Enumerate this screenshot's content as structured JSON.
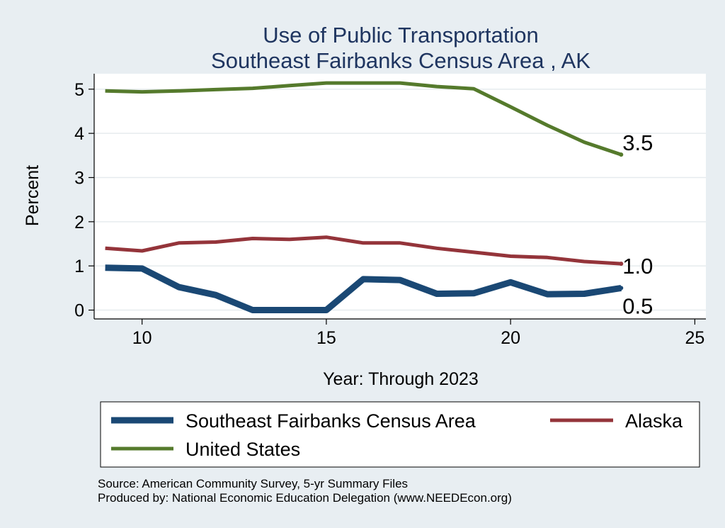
{
  "chart_data": {
    "type": "line",
    "title": "Use of Public Transportation",
    "subtitle": "Southeast Fairbanks Census Area , AK",
    "xlabel": "Year: Through 2023",
    "ylabel": "Percent",
    "xlim": [
      8.7,
      25.3
    ],
    "ylim": [
      -0.2,
      5.35
    ],
    "xticks": [
      10,
      15,
      20,
      25
    ],
    "yticks": [
      0,
      1,
      2,
      3,
      4,
      5
    ],
    "grid": true,
    "legend_position": "bottom",
    "series": [
      {
        "name": "Southeast Fairbanks Census Area",
        "color": "#1a4874",
        "x": [
          9,
          10,
          11,
          12,
          13,
          14,
          15,
          16,
          17,
          18,
          19,
          20,
          21,
          22,
          23
        ],
        "y": [
          0.96,
          0.94,
          0.52,
          0.34,
          0.0,
          0.0,
          0.0,
          0.7,
          0.68,
          0.37,
          0.38,
          0.63,
          0.36,
          0.37,
          0.5
        ],
        "end_label": "0.5"
      },
      {
        "name": "Alaska",
        "color": "#94343a",
        "x": [
          9,
          10,
          11,
          12,
          13,
          14,
          15,
          16,
          17,
          18,
          19,
          20,
          21,
          22,
          23
        ],
        "y": [
          1.4,
          1.34,
          1.52,
          1.54,
          1.62,
          1.6,
          1.65,
          1.52,
          1.52,
          1.4,
          1.31,
          1.22,
          1.19,
          1.1,
          1.05
        ],
        "end_label": "1.0"
      },
      {
        "name": "United States",
        "color": "#557a2c",
        "x": [
          9,
          10,
          11,
          12,
          13,
          14,
          15,
          16,
          17,
          18,
          19,
          20,
          21,
          22,
          23
        ],
        "y": [
          4.96,
          4.94,
          4.96,
          4.99,
          5.02,
          5.08,
          5.14,
          5.14,
          5.14,
          5.06,
          5.01,
          4.6,
          4.18,
          3.8,
          3.52
        ],
        "end_label": "3.5"
      }
    ],
    "notes": [
      "Source: American Community Survey, 5-yr Summary Files",
      "Produced by: National Economic Education Delegation (www.NEEDEcon.org)"
    ]
  }
}
